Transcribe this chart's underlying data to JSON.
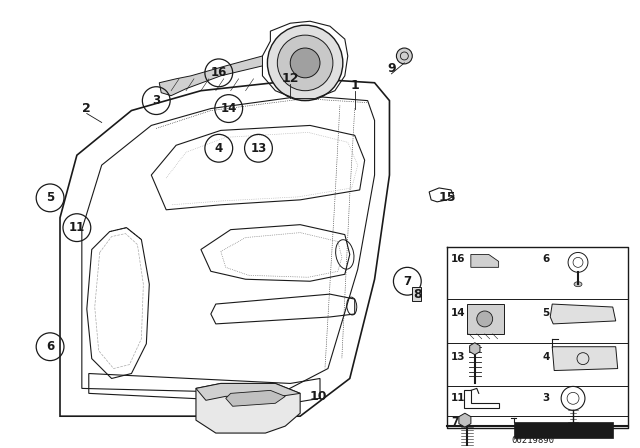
{
  "bg_color": "#ffffff",
  "part_number": "00219890",
  "fig_width": 6.4,
  "fig_height": 4.48,
  "dpi": 100
}
